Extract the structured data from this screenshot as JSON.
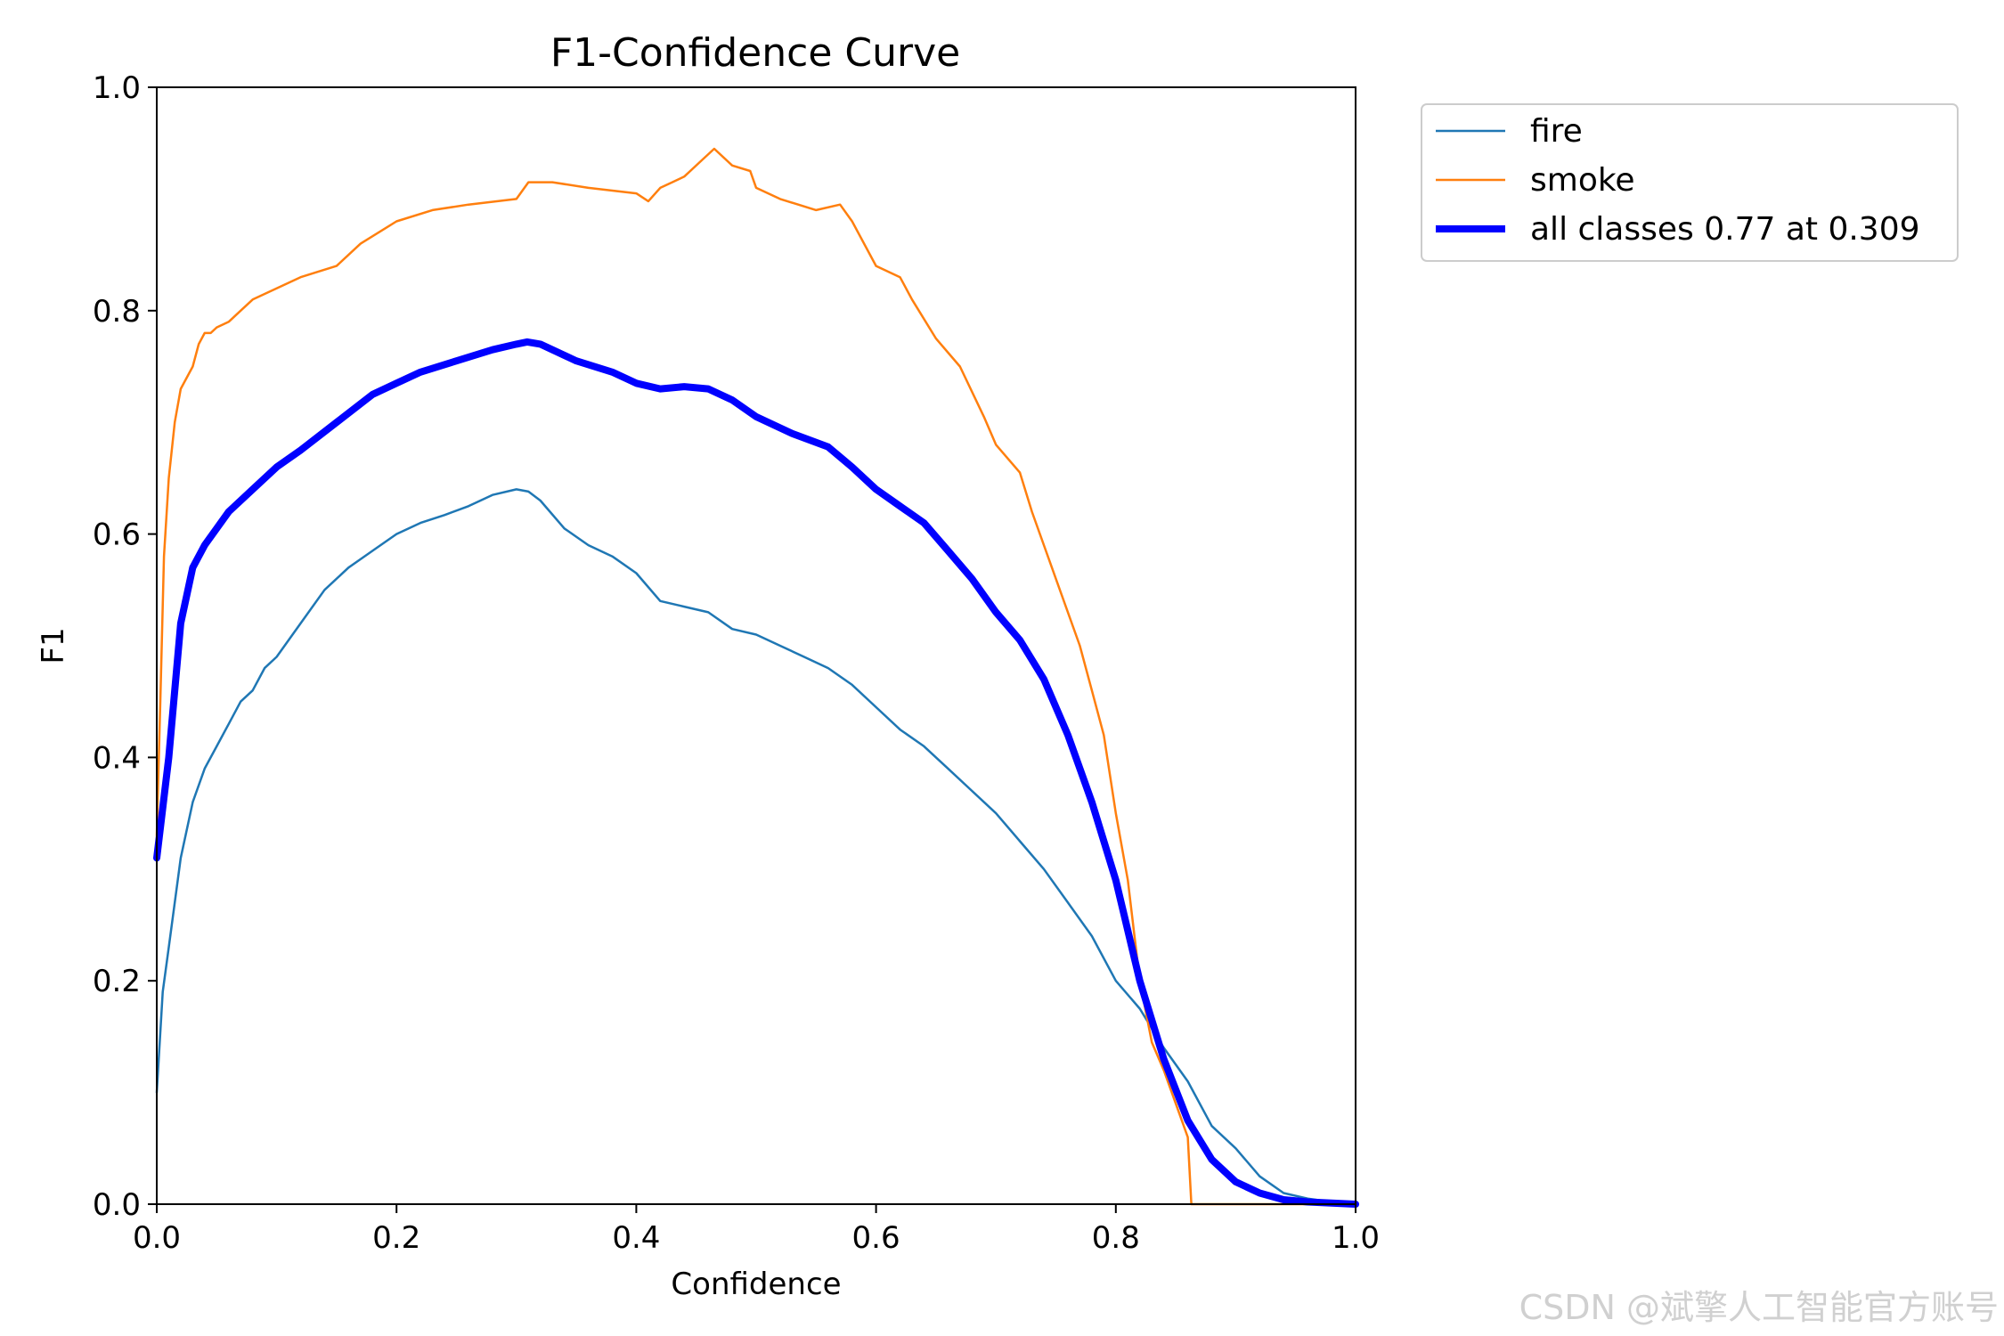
{
  "chart_data": {
    "type": "line",
    "title": "F1-Confidence Curve",
    "xlabel": "Confidence",
    "ylabel": "F1",
    "xlim": [
      0.0,
      1.0
    ],
    "ylim": [
      0.0,
      1.0
    ],
    "xticks": [
      "0.0",
      "0.2",
      "0.4",
      "0.6",
      "0.8",
      "1.0"
    ],
    "yticks": [
      "0.0",
      "0.2",
      "0.4",
      "0.6",
      "0.8",
      "1.0"
    ],
    "grid": false,
    "legend_position": "outside-top-right",
    "series": [
      {
        "name": "fire",
        "color": "#1f77b4",
        "x": [
          0.0,
          0.005,
          0.01,
          0.02,
          0.03,
          0.04,
          0.05,
          0.06,
          0.07,
          0.08,
          0.09,
          0.1,
          0.12,
          0.14,
          0.16,
          0.18,
          0.2,
          0.22,
          0.24,
          0.26,
          0.28,
          0.3,
          0.31,
          0.32,
          0.34,
          0.36,
          0.38,
          0.4,
          0.42,
          0.44,
          0.46,
          0.48,
          0.5,
          0.52,
          0.54,
          0.56,
          0.58,
          0.6,
          0.62,
          0.64,
          0.66,
          0.68,
          0.7,
          0.72,
          0.74,
          0.76,
          0.78,
          0.8,
          0.82,
          0.84,
          0.86,
          0.88,
          0.9,
          0.92,
          0.94,
          0.96,
          0.98,
          1.0
        ],
        "y": [
          0.1,
          0.19,
          0.23,
          0.31,
          0.36,
          0.39,
          0.41,
          0.43,
          0.45,
          0.46,
          0.48,
          0.49,
          0.52,
          0.55,
          0.57,
          0.585,
          0.6,
          0.61,
          0.617,
          0.625,
          0.635,
          0.64,
          0.638,
          0.63,
          0.605,
          0.59,
          0.58,
          0.565,
          0.54,
          0.535,
          0.53,
          0.515,
          0.51,
          0.5,
          0.49,
          0.48,
          0.465,
          0.445,
          0.425,
          0.41,
          0.39,
          0.37,
          0.35,
          0.325,
          0.3,
          0.27,
          0.24,
          0.2,
          0.175,
          0.14,
          0.11,
          0.07,
          0.05,
          0.025,
          0.01,
          0.005,
          0.002,
          0.0
        ]
      },
      {
        "name": "smoke",
        "color": "#ff7f0e",
        "x": [
          0.0,
          0.003,
          0.006,
          0.01,
          0.015,
          0.02,
          0.03,
          0.035,
          0.04,
          0.045,
          0.05,
          0.06,
          0.07,
          0.08,
          0.1,
          0.12,
          0.15,
          0.17,
          0.2,
          0.23,
          0.26,
          0.3,
          0.31,
          0.33,
          0.36,
          0.4,
          0.41,
          0.42,
          0.43,
          0.44,
          0.455,
          0.465,
          0.48,
          0.495,
          0.5,
          0.52,
          0.55,
          0.57,
          0.58,
          0.6,
          0.62,
          0.63,
          0.65,
          0.67,
          0.69,
          0.7,
          0.72,
          0.73,
          0.75,
          0.77,
          0.78,
          0.79,
          0.8,
          0.81,
          0.82,
          0.83,
          0.84,
          0.85,
          0.86,
          0.863,
          0.87,
          0.9,
          0.95,
          1.0
        ],
        "y": [
          0.33,
          0.45,
          0.58,
          0.65,
          0.7,
          0.73,
          0.75,
          0.77,
          0.78,
          0.78,
          0.785,
          0.79,
          0.8,
          0.81,
          0.82,
          0.83,
          0.84,
          0.86,
          0.88,
          0.89,
          0.895,
          0.9,
          0.915,
          0.915,
          0.91,
          0.905,
          0.898,
          0.91,
          0.915,
          0.92,
          0.935,
          0.945,
          0.93,
          0.925,
          0.91,
          0.9,
          0.89,
          0.895,
          0.88,
          0.84,
          0.83,
          0.81,
          0.775,
          0.75,
          0.705,
          0.68,
          0.655,
          0.62,
          0.56,
          0.5,
          0.46,
          0.42,
          0.35,
          0.29,
          0.2,
          0.145,
          0.12,
          0.09,
          0.06,
          0.0,
          0.0,
          0.0,
          0.0,
          0.0
        ]
      },
      {
        "name": "all classes 0.77 at 0.309",
        "color": "#0000ff",
        "x": [
          0.0,
          0.01,
          0.02,
          0.03,
          0.04,
          0.05,
          0.06,
          0.08,
          0.1,
          0.12,
          0.15,
          0.18,
          0.2,
          0.22,
          0.25,
          0.28,
          0.3,
          0.309,
          0.32,
          0.35,
          0.38,
          0.4,
          0.42,
          0.44,
          0.46,
          0.48,
          0.5,
          0.53,
          0.56,
          0.58,
          0.6,
          0.62,
          0.64,
          0.66,
          0.68,
          0.7,
          0.72,
          0.74,
          0.76,
          0.78,
          0.8,
          0.82,
          0.84,
          0.86,
          0.88,
          0.9,
          0.92,
          0.94,
          0.96,
          0.98,
          1.0
        ],
        "y": [
          0.31,
          0.4,
          0.52,
          0.57,
          0.59,
          0.605,
          0.62,
          0.64,
          0.66,
          0.675,
          0.7,
          0.725,
          0.735,
          0.745,
          0.755,
          0.765,
          0.77,
          0.772,
          0.77,
          0.755,
          0.745,
          0.735,
          0.73,
          0.732,
          0.73,
          0.72,
          0.705,
          0.69,
          0.678,
          0.66,
          0.64,
          0.625,
          0.61,
          0.585,
          0.56,
          0.53,
          0.505,
          0.47,
          0.42,
          0.36,
          0.29,
          0.2,
          0.13,
          0.075,
          0.04,
          0.02,
          0.01,
          0.004,
          0.002,
          0.001,
          0.0
        ]
      }
    ]
  },
  "watermark": "CSDN @斌擎人工智能官方账号"
}
